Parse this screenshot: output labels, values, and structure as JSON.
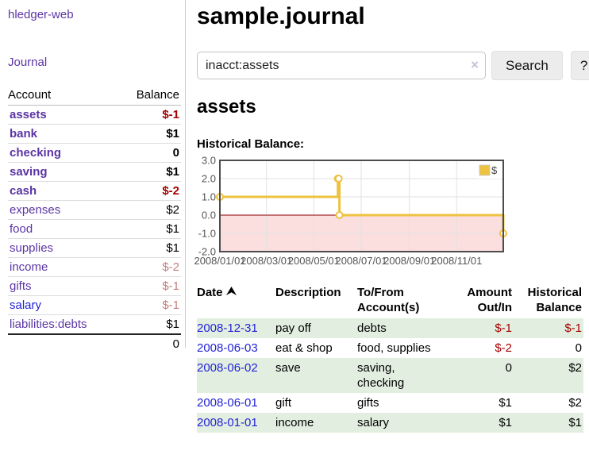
{
  "app": {
    "brand": "hledger-web"
  },
  "nav": {
    "journal": "Journal"
  },
  "sidebar_accounts": {
    "headers": {
      "account": "Account",
      "balance": "Balance"
    },
    "rows": [
      {
        "name": "assets",
        "balance": "$-1",
        "depth": 0,
        "bold": true,
        "balance_tone": "neg-strong",
        "link_color": "purple"
      },
      {
        "name": "bank",
        "balance": "$1",
        "depth": 1,
        "bold": true,
        "balance_tone": "",
        "link_color": "purple"
      },
      {
        "name": "checking",
        "balance": "0",
        "depth": 2,
        "bold": true,
        "balance_tone": "",
        "link_color": "purple"
      },
      {
        "name": "saving",
        "balance": "$1",
        "depth": 2,
        "bold": true,
        "balance_tone": "",
        "link_color": "purple"
      },
      {
        "name": "cash",
        "balance": "$-2",
        "depth": 1,
        "bold": true,
        "balance_tone": "neg-strong",
        "link_color": "purple"
      },
      {
        "name": "expenses",
        "balance": "$2",
        "depth": 0,
        "bold": false,
        "balance_tone": "",
        "link_color": "purple"
      },
      {
        "name": "food",
        "balance": "$1",
        "depth": 1,
        "bold": false,
        "balance_tone": "",
        "link_color": "purple"
      },
      {
        "name": "supplies",
        "balance": "$1",
        "depth": 1,
        "bold": false,
        "balance_tone": "",
        "link_color": "purple"
      },
      {
        "name": "income",
        "balance": "$-2",
        "depth": 0,
        "bold": false,
        "balance_tone": "neg-soft",
        "link_color": "purple"
      },
      {
        "name": "gifts",
        "balance": "$-1",
        "depth": 1,
        "bold": false,
        "balance_tone": "neg-soft",
        "link_color": "purple"
      },
      {
        "name": "salary",
        "balance": "$-1",
        "depth": 1,
        "bold": false,
        "balance_tone": "neg-soft",
        "link_color": "blue"
      },
      {
        "name": "liabilities:debts",
        "balance": "$1",
        "depth": 0,
        "bold": false,
        "balance_tone": "",
        "link_color": "purple"
      }
    ],
    "total": "0"
  },
  "header": {
    "title": "sample.journal"
  },
  "search": {
    "query": "inacct:assets",
    "clear_icon": "×",
    "button_label": "Search",
    "help_label": "?"
  },
  "account_page": {
    "heading": "assets",
    "chart_label": "Historical Balance:"
  },
  "chart_data": {
    "type": "line",
    "steps": true,
    "title": "Historical Balance:",
    "series": [
      {
        "name": "$",
        "color": "#edc240",
        "points": [
          [
            "2008-01-01",
            1
          ],
          [
            "2008-06-01",
            2
          ],
          [
            "2008-06-02",
            2
          ],
          [
            "2008-06-03",
            0
          ],
          [
            "2008-12-31",
            -1
          ]
        ]
      }
    ],
    "x_range": [
      "2008-01-01",
      "2008-12-31"
    ],
    "x_ticks": [
      {
        "date": "2008-01-01",
        "label": "2008/01/01"
      },
      {
        "date": "2008-03-01",
        "label": "2008/03/01"
      },
      {
        "date": "2008-05-01",
        "label": "2008/05/01"
      },
      {
        "date": "2008-07-01",
        "label": "2008/07/01"
      },
      {
        "date": "2008-09-01",
        "label": "2008/09/01"
      },
      {
        "date": "2008-11-01",
        "label": "2008/11/01"
      }
    ],
    "y_ticks": [
      {
        "v": 3,
        "label": "3.0"
      },
      {
        "v": 2,
        "label": "2.0"
      },
      {
        "v": 1,
        "label": "1.0"
      },
      {
        "v": 0,
        "label": "0.0"
      },
      {
        "v": -1,
        "label": "-1.0"
      },
      {
        "v": -2,
        "label": "-2.0"
      }
    ],
    "ylim": [
      -2,
      3
    ],
    "grid": true,
    "legend": {
      "label": "$",
      "position": "top-right"
    },
    "colors": {
      "line": "#edc240",
      "marker_fill": "#ffffff",
      "negative_fill": "#fbdede",
      "zero_line": "#8b0000",
      "grid": "#e2e2e2",
      "border": "#4d4d4d",
      "axis_text": "#545454"
    }
  },
  "register_table": {
    "headers": {
      "date": "Date",
      "description": "Description",
      "accounts": "To/From Account(s)",
      "amount": "Amount Out/In",
      "balance": "Historical Balance"
    },
    "rows": [
      {
        "date": "2008-12-31",
        "description": "pay off",
        "accounts": "debts",
        "amount": "$-1",
        "amount_neg": true,
        "balance": "$-1",
        "balance_neg": true
      },
      {
        "date": "2008-06-03",
        "description": "eat & shop",
        "accounts": "food, supplies",
        "amount": "$-2",
        "amount_neg": true,
        "balance": "0",
        "balance_neg": false
      },
      {
        "date": "2008-06-02",
        "description": "save",
        "accounts": "saving, checking",
        "amount": "0",
        "amount_neg": false,
        "balance": "$2",
        "balance_neg": false
      },
      {
        "date": "2008-06-01",
        "description": "gift",
        "accounts": "gifts",
        "amount": "$1",
        "amount_neg": false,
        "balance": "$2",
        "balance_neg": false
      },
      {
        "date": "2008-01-01",
        "description": "income",
        "accounts": "salary",
        "amount": "$1",
        "amount_neg": false,
        "balance": "$1",
        "balance_neg": false
      }
    ]
  }
}
